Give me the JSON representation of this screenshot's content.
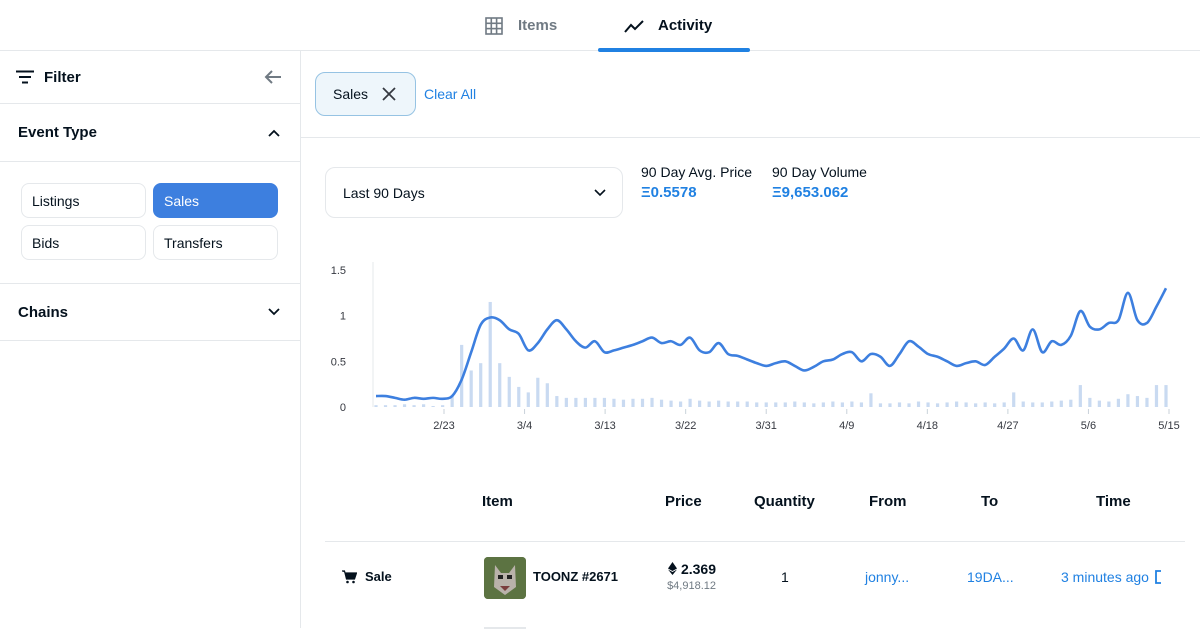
{
  "tabs": [
    {
      "label": "Items",
      "icon": "grid-icon"
    },
    {
      "label": "Activity",
      "icon": "trending-icon",
      "active": true
    }
  ],
  "sidebar": {
    "filter_label": "Filter",
    "event_type": {
      "title": "Event Type",
      "options": [
        {
          "label": "Listings",
          "active": false
        },
        {
          "label": "Sales",
          "active": true
        },
        {
          "label": "Bids",
          "active": false
        },
        {
          "label": "Transfers",
          "active": false
        }
      ]
    },
    "chains_title": "Chains"
  },
  "filters": {
    "chips": [
      "Sales"
    ],
    "clear_all": "Clear All"
  },
  "period_select": {
    "value": "Last 90 Days"
  },
  "stats": {
    "avg_price_label": "90 Day Avg. Price",
    "avg_price_value": "Ξ0.5578",
    "volume_label": "90 Day Volume",
    "volume_value": "Ξ9,653.062"
  },
  "chart_data": {
    "type": "line",
    "title": "",
    "y_ticks": [
      "0",
      "0.5",
      "1",
      "1.5"
    ],
    "ylim": [
      0,
      1.5
    ],
    "x_tick_labels": [
      "2/23",
      "3/4",
      "3/13",
      "3/22",
      "3/31",
      "4/9",
      "4/18",
      "4/27",
      "5/6",
      "5/15"
    ],
    "series": [
      {
        "name": "Avg Price",
        "values": [
          0.12,
          0.12,
          0.1,
          0.08,
          0.1,
          0.09,
          0.1,
          0.09,
          0.12,
          0.3,
          0.6,
          0.9,
          0.98,
          0.95,
          0.85,
          0.8,
          0.62,
          0.7,
          0.85,
          0.95,
          0.85,
          0.72,
          0.65,
          0.72,
          0.6,
          0.62,
          0.65,
          0.68,
          0.72,
          0.76,
          0.7,
          0.72,
          0.68,
          0.76,
          0.62,
          0.6,
          0.7,
          0.58,
          0.56,
          0.52,
          0.48,
          0.45,
          0.48,
          0.5,
          0.45,
          0.4,
          0.44,
          0.5,
          0.52,
          0.58,
          0.6,
          0.5,
          0.58,
          0.55,
          0.45,
          0.58,
          0.72,
          0.66,
          0.58,
          0.55,
          0.5,
          0.45,
          0.48,
          0.5,
          0.46,
          0.55,
          0.64,
          0.75,
          0.62,
          0.85,
          0.6,
          0.72,
          0.68,
          0.78,
          1.05,
          0.88,
          0.85,
          0.92,
          0.95,
          1.25,
          0.95,
          0.92,
          1.1,
          1.3
        ]
      },
      {
        "name": "Volume",
        "values": [
          0.02,
          0.02,
          0.02,
          0.03,
          0.02,
          0.03,
          0.01,
          0.02,
          0.12,
          0.68,
          0.4,
          0.48,
          1.15,
          0.48,
          0.33,
          0.22,
          0.16,
          0.32,
          0.26,
          0.12,
          0.1,
          0.1,
          0.1,
          0.1,
          0.1,
          0.09,
          0.08,
          0.09,
          0.09,
          0.1,
          0.08,
          0.07,
          0.06,
          0.09,
          0.07,
          0.06,
          0.07,
          0.06,
          0.06,
          0.06,
          0.05,
          0.05,
          0.05,
          0.05,
          0.06,
          0.05,
          0.04,
          0.05,
          0.06,
          0.05,
          0.06,
          0.05,
          0.15,
          0.04,
          0.04,
          0.05,
          0.04,
          0.06,
          0.05,
          0.04,
          0.05,
          0.06,
          0.05,
          0.04,
          0.05,
          0.04,
          0.05,
          0.16,
          0.06,
          0.05,
          0.05,
          0.06,
          0.07,
          0.08,
          0.24,
          0.1,
          0.07,
          0.06,
          0.09,
          0.14,
          0.12,
          0.1,
          0.24,
          0.24
        ]
      }
    ]
  },
  "table": {
    "headers": [
      "Item",
      "Price",
      "Quantity",
      "From",
      "To",
      "Time"
    ],
    "rows": [
      {
        "event": "Sale",
        "item": "TOONZ #2671",
        "price_eth": "2.369",
        "price_usd": "$4,918.12",
        "quantity": "1",
        "from": "jonny...",
        "to": "19DA...",
        "time": "3 minutes ago"
      }
    ]
  }
}
